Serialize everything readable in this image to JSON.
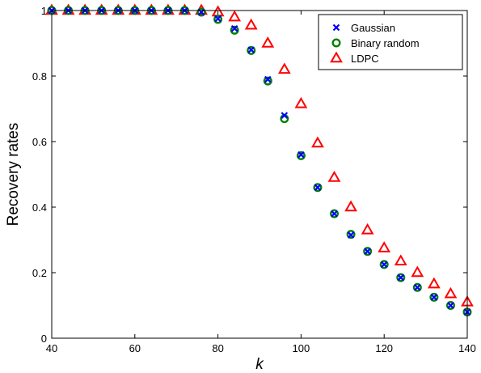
{
  "chart_data": {
    "type": "scatter",
    "title": "",
    "xlabel": "k",
    "ylabel": "Recovery rates",
    "xlim": [
      40,
      140
    ],
    "ylim": [
      0,
      1
    ],
    "xticks": [
      40,
      60,
      80,
      100,
      120,
      140
    ],
    "yticks": [
      0,
      0.2,
      0.4,
      0.6,
      0.8,
      1
    ],
    "xtick_labels": [
      "40",
      "60",
      "80",
      "100",
      "120",
      "140"
    ],
    "ytick_labels": [
      "0",
      "0.2",
      "0.4",
      "0.6",
      "0.8",
      "1"
    ],
    "grid": false,
    "legend_position": "top-right",
    "x": [
      40,
      44,
      48,
      52,
      56,
      60,
      64,
      68,
      72,
      76,
      80,
      84,
      88,
      92,
      96,
      100,
      104,
      108,
      112,
      116,
      120,
      124,
      128,
      132,
      136,
      140
    ],
    "series": [
      {
        "name": "Gaussian",
        "marker": "x",
        "color": "#0000ff",
        "values": [
          1,
          1,
          1,
          1,
          1,
          1,
          1,
          1,
          1,
          0.995,
          0.975,
          0.945,
          0.88,
          0.79,
          0.68,
          0.56,
          0.46,
          0.38,
          0.315,
          0.265,
          0.225,
          0.185,
          0.155,
          0.125,
          0.1,
          0.08
        ]
      },
      {
        "name": "Binary random",
        "marker": "circle",
        "color": "#008000",
        "values": [
          1,
          1,
          1,
          1,
          1,
          1,
          1,
          1,
          1,
          0.995,
          0.973,
          0.94,
          0.878,
          0.785,
          0.67,
          0.557,
          0.46,
          0.38,
          0.317,
          0.265,
          0.225,
          0.185,
          0.155,
          0.125,
          0.1,
          0.08
        ]
      },
      {
        "name": "LDPC",
        "marker": "triangle",
        "color": "#ff0000",
        "values": [
          1,
          1,
          1,
          1,
          1,
          1,
          1,
          1,
          1,
          1,
          0.995,
          0.98,
          0.955,
          0.9,
          0.82,
          0.715,
          0.595,
          0.49,
          0.4,
          0.33,
          0.275,
          0.235,
          0.2,
          0.165,
          0.135,
          0.11
        ]
      }
    ]
  }
}
